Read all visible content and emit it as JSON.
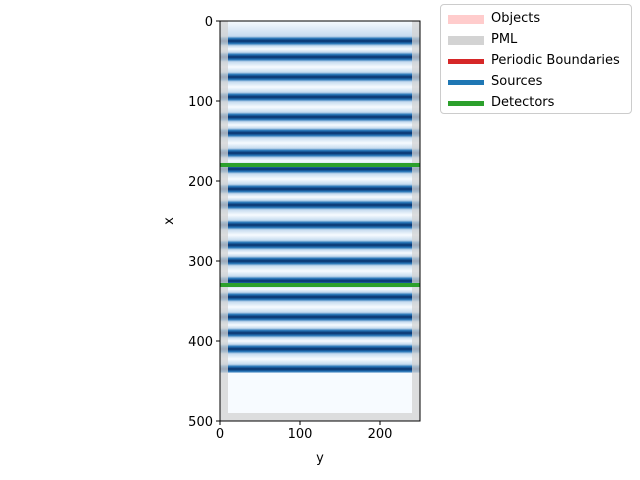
{
  "chart_data": {
    "type": "heatmap",
    "title": "",
    "xlabel": "y",
    "ylabel": "x",
    "xlim": [
      0,
      250
    ],
    "ylim": [
      500,
      0
    ],
    "x_ticks": [
      "0",
      "100",
      "200"
    ],
    "y_ticks": [
      "0",
      "100",
      "200",
      "300",
      "400",
      "500"
    ],
    "colormap": "Blues",
    "field": {
      "dark_band_centers_x": [
        25,
        45,
        70,
        95,
        120,
        140,
        165,
        185,
        210,
        230,
        255,
        280,
        300,
        325,
        345,
        370,
        390,
        410,
        435
      ],
      "field_extent_x": [
        0,
        440
      ]
    },
    "pml": {
      "thickness": 10,
      "color": "#d3d3d3"
    },
    "detectors": [
      {
        "x": 180,
        "color": "#2ca02c"
      },
      {
        "x": 330,
        "color": "#2ca02c"
      }
    ],
    "legend": {
      "placement": "outside-upper-right",
      "entries": [
        {
          "label": "Objects",
          "color": "#ffcccc"
        },
        {
          "label": "PML",
          "color": "#d3d3d3"
        },
        {
          "label": "Periodic Boundaries",
          "color": "#d62728"
        },
        {
          "label": "Sources",
          "color": "#1f77b4"
        },
        {
          "label": "Detectors",
          "color": "#2ca02c"
        }
      ]
    }
  }
}
